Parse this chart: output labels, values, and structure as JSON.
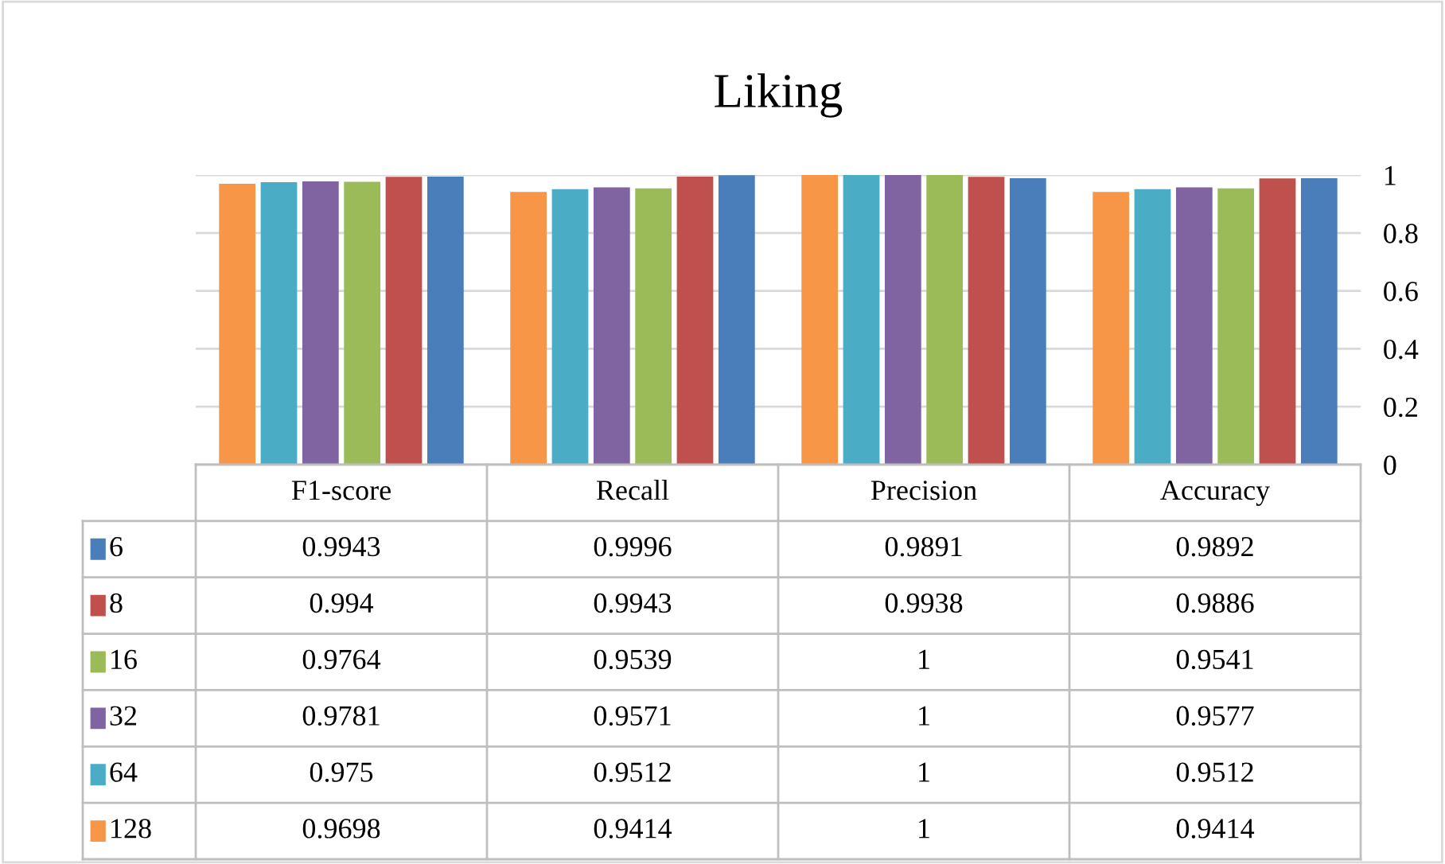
{
  "chart_data": {
    "type": "bar",
    "title": "Liking",
    "categories": [
      "F1-score",
      "Recall",
      "Precision",
      "Accuracy"
    ],
    "series": [
      {
        "name": "6",
        "color": "#4a7ebb",
        "values": [
          0.9943,
          0.9996,
          0.9891,
          0.9892
        ]
      },
      {
        "name": "8",
        "color": "#c0504d",
        "values": [
          0.994,
          0.9943,
          0.9938,
          0.9886
        ]
      },
      {
        "name": "16",
        "color": "#9bbb59",
        "values": [
          0.9764,
          0.9539,
          1,
          0.9541
        ]
      },
      {
        "name": "32",
        "color": "#8064a2",
        "values": [
          0.9781,
          0.9571,
          1,
          0.9577
        ]
      },
      {
        "name": "64",
        "color": "#4bacc6",
        "values": [
          0.975,
          0.9512,
          1,
          0.9512
        ]
      },
      {
        "name": "128",
        "color": "#f79646",
        "values": [
          0.9698,
          0.9414,
          1,
          0.9414
        ]
      }
    ],
    "ylim": [
      0,
      1
    ],
    "yticks": [
      0,
      0.2,
      0.4,
      0.6,
      0.8,
      1
    ],
    "grid": "y",
    "legend": "bottom",
    "data_labels": true
  }
}
